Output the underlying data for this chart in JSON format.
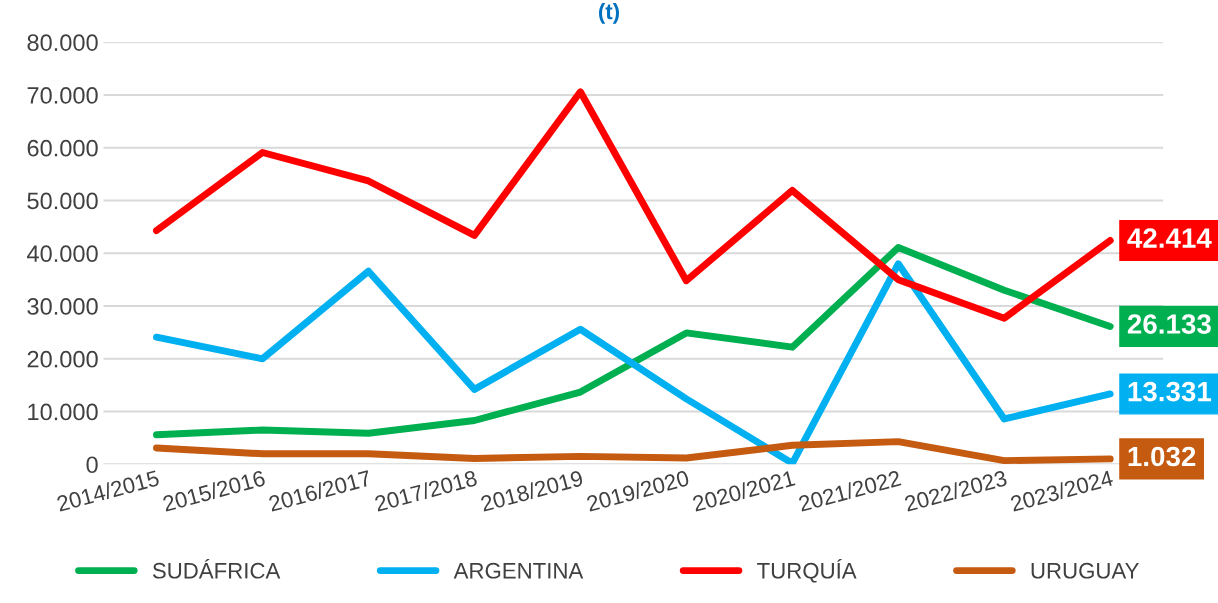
{
  "chart_data": {
    "type": "line",
    "title": "(t)",
    "categories": [
      "2014/2015",
      "2015/2016",
      "2016/2017",
      "2017/2018",
      "2018/2019",
      "2019/2020",
      "2020/2021",
      "2021/2022",
      "2022/2023",
      "2023/2024"
    ],
    "series": [
      {
        "name": "SUDÁFRICA",
        "color": "#00b050",
        "values": [
          5600,
          6500,
          5900,
          8300,
          13700,
          24900,
          22200,
          41100,
          33000,
          26133
        ],
        "value_labels": [
          null,
          null,
          null,
          null,
          null,
          null,
          null,
          null,
          null,
          "26.133"
        ]
      },
      {
        "name": "ARGENTINA",
        "color": "#00b0f0",
        "values": [
          24100,
          20000,
          36600,
          14200,
          25600,
          12400,
          200,
          38000,
          8600,
          13331
        ],
        "value_labels": [
          null,
          null,
          null,
          null,
          null,
          null,
          null,
          null,
          null,
          "13.331"
        ]
      },
      {
        "name": "TURQUÍA",
        "color": "#ff0000",
        "values": [
          44300,
          59100,
          53700,
          43400,
          70600,
          34800,
          51900,
          35000,
          27700,
          42414
        ],
        "value_labels": [
          null,
          null,
          null,
          null,
          null,
          null,
          null,
          null,
          null,
          "42.414"
        ]
      },
      {
        "name": "URUGUAY",
        "color": "#c55a11",
        "values": [
          3100,
          2000,
          2000,
          1100,
          1500,
          1200,
          3600,
          4300,
          700,
          1032
        ],
        "value_labels": [
          null,
          null,
          null,
          null,
          null,
          null,
          null,
          null,
          null,
          "1.032"
        ]
      }
    ],
    "ylim": [
      0,
      80000
    ],
    "yticks": [
      {
        "value": 0,
        "label": "0"
      },
      {
        "value": 10000,
        "label": "10.000"
      },
      {
        "value": 20000,
        "label": "20.000"
      },
      {
        "value": 30000,
        "label": "30.000"
      },
      {
        "value": 40000,
        "label": "40.000"
      },
      {
        "value": 50000,
        "label": "50.000"
      },
      {
        "value": 60000,
        "label": "60.000"
      },
      {
        "value": 70000,
        "label": "70.000"
      },
      {
        "value": 80000,
        "label": "80.000"
      }
    ],
    "grid": "y",
    "legend": "bottom",
    "marker": "none",
    "line_style": "solid"
  }
}
